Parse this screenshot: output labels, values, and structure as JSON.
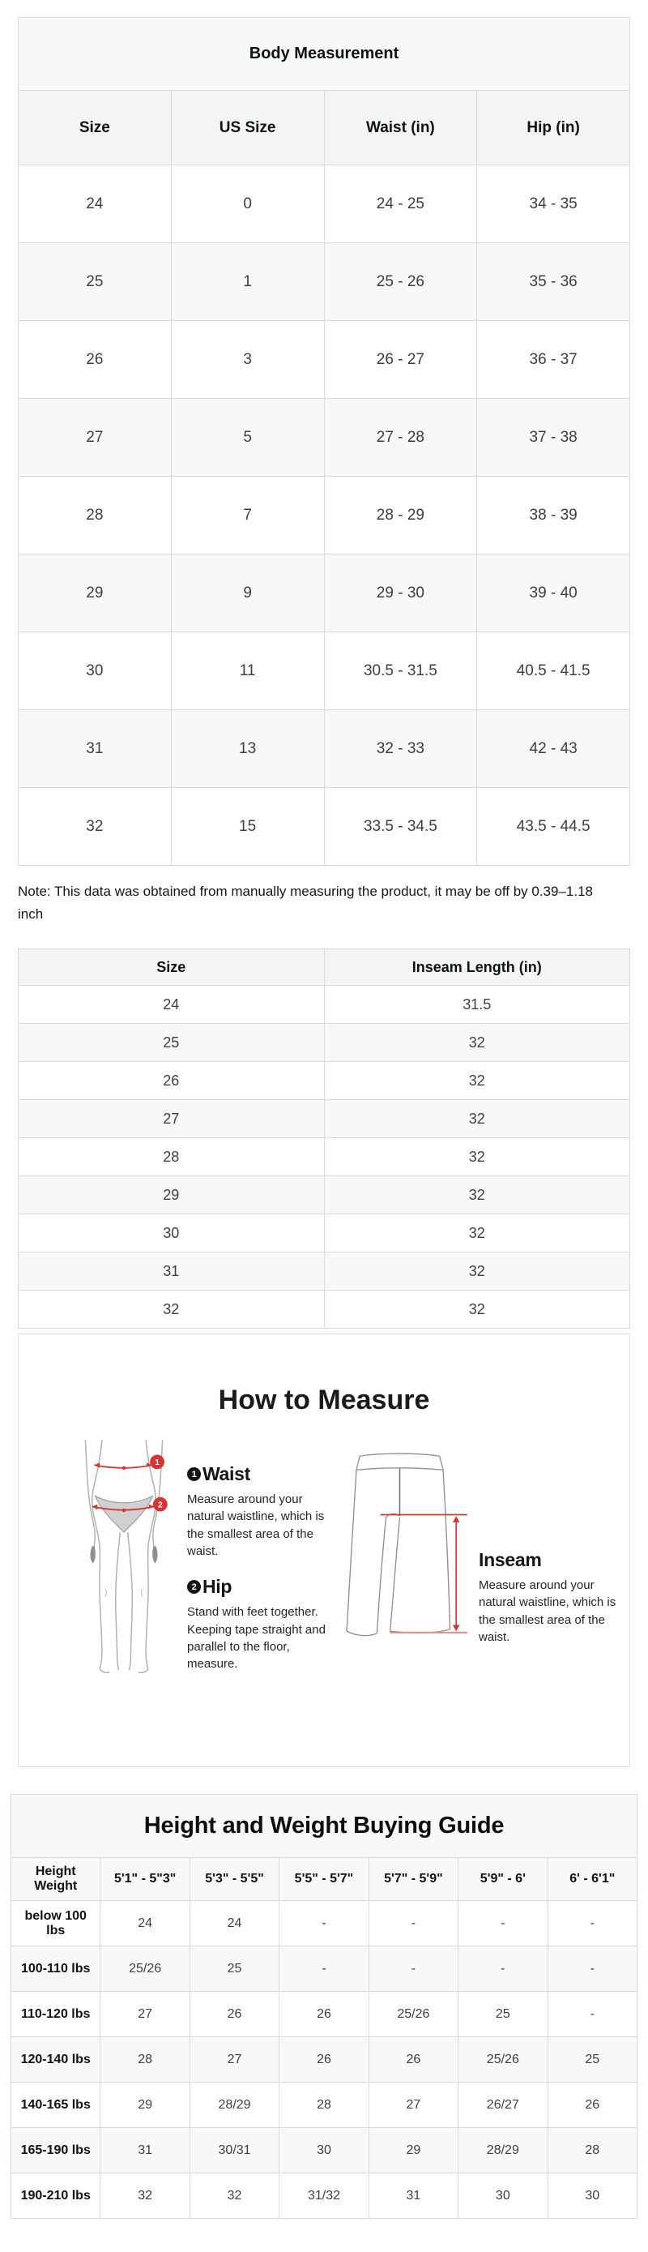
{
  "body_measurement": {
    "title": "Body Measurement",
    "headers": [
      "Size",
      "US Size",
      "Waist (in)",
      "Hip (in)"
    ],
    "rows": [
      [
        "24",
        "0",
        "24 - 25",
        "34 - 35"
      ],
      [
        "25",
        "1",
        "25 - 26",
        "35 - 36"
      ],
      [
        "26",
        "3",
        "26 - 27",
        "36 - 37"
      ],
      [
        "27",
        "5",
        "27 - 28",
        "37 - 38"
      ],
      [
        "28",
        "7",
        "28 - 29",
        "38 - 39"
      ],
      [
        "29",
        "9",
        "29 - 30",
        "39 - 40"
      ],
      [
        "30",
        "11",
        "30.5 - 31.5",
        "40.5 - 41.5"
      ],
      [
        "31",
        "13",
        "32 - 33",
        "42 - 43"
      ],
      [
        "32",
        "15",
        "33.5 - 34.5",
        "43.5 - 44.5"
      ]
    ]
  },
  "note": "Note: This data was obtained from manually measuring the product, it may be off by 0.39–1.18 inch",
  "inseam": {
    "headers": [
      "Size",
      "Inseam Length (in)"
    ],
    "rows": [
      [
        "24",
        "31.5"
      ],
      [
        "25",
        "32"
      ],
      [
        "26",
        "32"
      ],
      [
        "27",
        "32"
      ],
      [
        "28",
        "32"
      ],
      [
        "29",
        "32"
      ],
      [
        "30",
        "32"
      ],
      [
        "31",
        "32"
      ],
      [
        "32",
        "32"
      ]
    ]
  },
  "how_to_measure": {
    "title": "How to Measure",
    "items": [
      {
        "num": "1",
        "label": "Waist",
        "text": "Measure around your natural waistline, which is the smallest area of the waist."
      },
      {
        "num": "2",
        "label": "Hip",
        "text": "Stand with feet together. Keeping tape straight and parallel to the floor, measure."
      },
      {
        "label": "Inseam",
        "text": "Measure around your natural waistline, which is the smallest area of the waist."
      }
    ],
    "accent_color": "#d93434",
    "figures": [
      "body-lower-half-figure",
      "wide-leg-pants-figure"
    ]
  },
  "height_weight": {
    "title": "Height and Weight Buying Guide",
    "headers": [
      "Height Weight",
      "5'1\" - 5\"3\"",
      "5'3\" - 5'5\"",
      "5'5\" - 5'7\"",
      "5'7\" - 5'9\"",
      "5'9\" - 6'",
      "6' - 6'1\""
    ],
    "rows": [
      [
        "below 100 lbs",
        "24",
        "24",
        "-",
        "-",
        "-",
        "-"
      ],
      [
        "100-110 lbs",
        "25/26",
        "25",
        "-",
        "-",
        "-",
        "-"
      ],
      [
        "110-120 lbs",
        "27",
        "26",
        "26",
        "25/26",
        "25",
        "-"
      ],
      [
        "120-140 lbs",
        "28",
        "27",
        "26",
        "26",
        "25/26",
        "25"
      ],
      [
        "140-165 lbs",
        "29",
        "28/29",
        "28",
        "27",
        "26/27",
        "26"
      ],
      [
        "165-190 lbs",
        "31",
        "30/31",
        "30",
        "29",
        "28/29",
        "28"
      ],
      [
        "190-210 lbs",
        "32",
        "32",
        "31/32",
        "31",
        "30",
        "30"
      ]
    ]
  }
}
